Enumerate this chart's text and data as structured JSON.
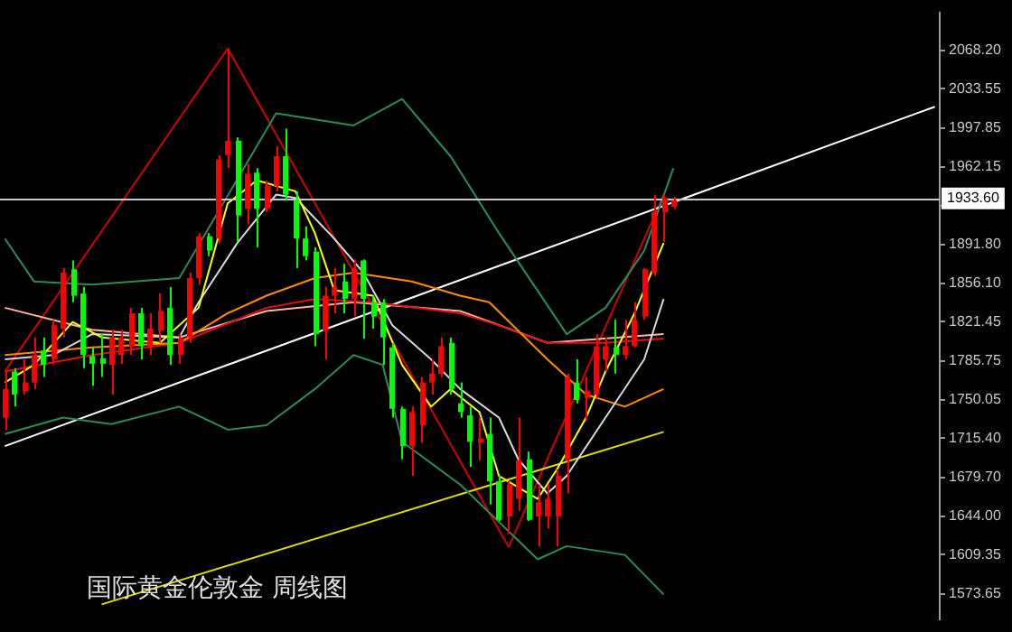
{
  "chart_data": {
    "type": "candlestick",
    "title": "国际黄金伦敦金 周线图",
    "categories": [
      null,
      null,
      null,
      null,
      null,
      null,
      null,
      null,
      null,
      null,
      null,
      null,
      null,
      null,
      null,
      null,
      null,
      null,
      null,
      null,
      null,
      null,
      null,
      null,
      null,
      null,
      null,
      null,
      null,
      null,
      null,
      null,
      null,
      null,
      null,
      null,
      null,
      null,
      null,
      null,
      null,
      null,
      null,
      null,
      null,
      null,
      null,
      null,
      null,
      null,
      null,
      null,
      null,
      null,
      null,
      null,
      null,
      null,
      null,
      null,
      null,
      null,
      null,
      null,
      null,
      null,
      null,
      null,
      null,
      null,
      null,
      null,
      null,
      null,
      null,
      null,
      null,
      null,
      null,
      null,
      null,
      null,
      null,
      null,
      null,
      null,
      null,
      null,
      null,
      null,
      null,
      null,
      null,
      null,
      null,
      null,
      null
    ],
    "ohlc": [
      [
        1734,
        1776,
        1723,
        1760
      ],
      [
        1776,
        1779,
        1744,
        1755
      ],
      [
        1758,
        1787,
        1755,
        1766
      ],
      [
        1766,
        1807,
        1760,
        1791
      ],
      [
        1795,
        1807,
        1771,
        1782
      ],
      [
        1787,
        1823,
        1782,
        1818
      ],
      [
        1815,
        1870,
        1807,
        1866
      ],
      [
        1869,
        1877,
        1839,
        1845
      ],
      [
        1847,
        1853,
        1779,
        1791
      ],
      [
        1790,
        1798,
        1763,
        1783
      ],
      [
        1788,
        1810,
        1771,
        1783
      ],
      [
        1782,
        1814,
        1755,
        1807
      ],
      [
        1791,
        1814,
        1783,
        1806
      ],
      [
        1799,
        1834,
        1791,
        1829
      ],
      [
        1829,
        1834,
        1787,
        1799
      ],
      [
        1798,
        1829,
        1791,
        1815
      ],
      [
        1813,
        1847,
        1802,
        1831
      ],
      [
        1834,
        1853,
        1782,
        1791
      ],
      [
        1791,
        1810,
        1783,
        1806
      ],
      [
        1807,
        1866,
        1802,
        1861
      ],
      [
        1861,
        1902,
        1855,
        1899
      ],
      [
        1899,
        1902,
        1881,
        1886
      ],
      [
        1897,
        1973,
        1893,
        1969
      ],
      [
        1973,
        2070,
        1961,
        1986
      ],
      [
        1986,
        1989,
        1894,
        1918
      ],
      [
        1924,
        1965,
        1910,
        1956
      ],
      [
        1957,
        1961,
        1889,
        1924
      ],
      [
        1924,
        1950,
        1921,
        1945
      ],
      [
        1945,
        1981,
        1940,
        1972
      ],
      [
        1972,
        1997,
        1932,
        1937
      ],
      [
        1932,
        1940,
        1870,
        1897
      ],
      [
        1897,
        1908,
        1877,
        1881
      ],
      [
        1885,
        1889,
        1799,
        1810
      ],
      [
        1813,
        1853,
        1787,
        1845
      ],
      [
        1845,
        1870,
        1829,
        1853
      ],
      [
        1858,
        1874,
        1829,
        1842
      ],
      [
        1842,
        1878,
        1826,
        1870
      ],
      [
        1877,
        1878,
        1806,
        1842
      ],
      [
        1839,
        1845,
        1815,
        1826
      ],
      [
        1839,
        1842,
        1782,
        1807
      ],
      [
        1798,
        1802,
        1734,
        1742
      ],
      [
        1742,
        1744,
        1696,
        1708
      ],
      [
        1708,
        1744,
        1681,
        1739
      ],
      [
        1727,
        1771,
        1711,
        1766
      ],
      [
        1766,
        1787,
        1755,
        1774
      ],
      [
        1774,
        1807,
        1771,
        1799
      ],
      [
        1802,
        1807,
        1755,
        1760
      ],
      [
        1747,
        1766,
        1734,
        1739
      ],
      [
        1736,
        1744,
        1689,
        1712
      ],
      [
        1711,
        1734,
        1695,
        1715
      ],
      [
        1719,
        1734,
        1655,
        1676
      ],
      [
        1676,
        1681,
        1640,
        1641
      ],
      [
        1644,
        1676,
        1628,
        1673
      ],
      [
        1660,
        1734,
        1649,
        1695
      ],
      [
        1696,
        1703,
        1640,
        1641
      ],
      [
        1644,
        1673,
        1617,
        1657
      ],
      [
        1644,
        1673,
        1633,
        1660
      ],
      [
        1644,
        1687,
        1617,
        1681
      ],
      [
        1695,
        1774,
        1665,
        1771
      ],
      [
        1766,
        1787,
        1747,
        1750
      ],
      [
        1752,
        1771,
        1731,
        1758
      ],
      [
        1755,
        1810,
        1752,
        1799
      ],
      [
        1787,
        1807,
        1776,
        1799
      ],
      [
        1798,
        1823,
        1774,
        1791
      ],
      [
        1791,
        1823,
        1787,
        1799
      ],
      [
        1799,
        1839,
        1798,
        1823
      ],
      [
        1826,
        1870,
        1823,
        1869
      ],
      [
        1866,
        1937,
        1863,
        1921
      ],
      [
        1921,
        1937,
        1894,
        1934
      ],
      [
        1926,
        1935,
        1924,
        1932
      ],
      null,
      null,
      null,
      null,
      null,
      null,
      null,
      null,
      null,
      null,
      null,
      null,
      null,
      null,
      null,
      null,
      null,
      null,
      null,
      null,
      null,
      null,
      null,
      null,
      null,
      null,
      null
    ],
    "colors": [
      "#ff0000",
      "#00ff00",
      "#ff0000",
      "#ff0000",
      "#00ff00",
      "#ff0000",
      "#ff0000",
      "#00ff00",
      "#00ff00",
      "#00ff00",
      "#00ff00",
      "#ff0000",
      "#ff0000",
      "#ff0000",
      "#00ff00",
      "#ff0000",
      "#ff0000",
      "#00ff00",
      "#ff0000",
      "#ff0000",
      "#ff0000",
      "#00ff00",
      "#ff0000",
      "#ff0000",
      "#00ff00",
      "#ff0000",
      "#00ff00",
      "#ff0000",
      "#ff0000",
      "#00ff00",
      "#00ff00",
      "#00ff00",
      "#00ff00",
      "#ff0000",
      "#ff0000",
      "#00ff00",
      "#ff0000",
      "#00ff00",
      "#00ff00",
      "#00ff00",
      "#00ff00",
      "#00ff00",
      "#ff0000",
      "#ff0000",
      "#ff0000",
      "#ff0000",
      "#00ff00",
      "#00ff00",
      "#00ff00",
      "#ff0000",
      "#00ff00",
      "#00ff00",
      "#ff0000",
      "#ff0000",
      "#00ff00",
      "#ff0000",
      "#ff0000",
      "#ff0000",
      "#ff0000",
      "#00ff00",
      "#ff0000",
      "#ff0000",
      "#ff0000",
      "#00ff00",
      "#ff0000",
      "#ff0000",
      "#ff0000",
      "#ff0000",
      "#ff0000",
      "#ff0000",
      null,
      null,
      null,
      null,
      null,
      null,
      null,
      null,
      null,
      null,
      null,
      null,
      null,
      null,
      null,
      null,
      null,
      null,
      null,
      null,
      null,
      null,
      null,
      null,
      null,
      null,
      null
    ],
    "series": [
      {
        "type": "line",
        "color": "#2e8b57",
        "values": [
          1897,
          null,
          null,
          1858,
          null,
          null,
          null,
          null,
          null,
          1855,
          null,
          null,
          null,
          null,
          null,
          null,
          null,
          null,
          1861,
          null,
          null,
          null,
          null,
          null,
          null,
          null,
          null,
          null,
          2011,
          null,
          null,
          null,
          null,
          null,
          null,
          null,
          2000,
          null,
          null,
          null,
          null,
          2024,
          null,
          null,
          null,
          null,
          1972,
          null,
          null,
          null,
          null,
          1902,
          null,
          null,
          null,
          null,
          null,
          null,
          1810,
          null,
          null,
          null,
          1834,
          null,
          null,
          null,
          1886,
          null,
          null,
          1961,
          null,
          null,
          null,
          null,
          null,
          null,
          null,
          null,
          null,
          null,
          null,
          null,
          null,
          null,
          null,
          null,
          null,
          null,
          null,
          null,
          null,
          null,
          null,
          null,
          null,
          null,
          null
        ]
      },
      {
        "type": "line",
        "color": "#2e8b57",
        "values": [
          1719,
          null,
          null,
          null,
          null,
          null,
          1734,
          null,
          null,
          null,
          null,
          1728,
          null,
          null,
          null,
          null,
          null,
          null,
          1744,
          null,
          null,
          null,
          null,
          1723,
          null,
          null,
          null,
          1727,
          null,
          null,
          null,
          null,
          1760,
          null,
          null,
          null,
          1791,
          null,
          null,
          1782,
          null,
          1712,
          null,
          null,
          null,
          null,
          null,
          1673,
          null,
          null,
          null,
          null,
          null,
          null,
          null,
          1605,
          null,
          null,
          1617,
          null,
          null,
          null,
          null,
          null,
          1609,
          null,
          null,
          null,
          1573,
          null,
          null,
          null,
          null,
          null,
          null,
          null,
          null,
          null,
          null,
          null,
          null,
          null,
          null,
          null,
          null,
          null,
          null,
          null,
          null,
          null,
          null,
          null,
          null,
          null,
          null,
          null,
          null
        ]
      },
      {
        "type": "line",
        "color": "#ffff00",
        "values": [
          1766,
          null,
          null,
          1782,
          null,
          null,
          null,
          1821,
          null,
          null,
          1807,
          null,
          null,
          null,
          null,
          null,
          1802,
          null,
          null,
          null,
          1834,
          null,
          null,
          1929,
          null,
          null,
          1950,
          null,
          null,
          null,
          1940,
          null,
          1902,
          null,
          1850,
          null,
          null,
          null,
          1845,
          null,
          null,
          1782,
          null,
          null,
          1744,
          null,
          1760,
          null,
          null,
          1739,
          null,
          1681,
          null,
          null,
          null,
          1660,
          null,
          1687,
          null,
          null,
          1734,
          null,
          1776,
          null,
          null,
          1829,
          null,
          null,
          1893,
          null,
          null,
          null,
          null,
          null,
          null,
          null,
          null,
          null,
          null,
          null,
          null,
          null,
          null,
          null,
          null,
          null,
          null,
          null,
          null,
          null,
          null,
          null,
          null,
          null,
          null,
          null,
          null
        ]
      },
      {
        "type": "line",
        "color": "#d8d8d8",
        "values": [
          1787,
          null,
          null,
          null,
          null,
          1791,
          null,
          null,
          null,
          1810,
          null,
          null,
          null,
          null,
          null,
          null,
          null,
          null,
          1807,
          null,
          1839,
          null,
          null,
          null,
          1893,
          null,
          null,
          null,
          1937,
          null,
          1934,
          null,
          null,
          null,
          1897,
          null,
          null,
          1866,
          null,
          null,
          1818,
          null,
          null,
          null,
          1787,
          null,
          null,
          1760,
          null,
          null,
          null,
          1734,
          null,
          1696,
          null,
          null,
          1665,
          null,
          1681,
          null,
          null,
          null,
          1734,
          null,
          null,
          null,
          1787,
          null,
          1842,
          null,
          null,
          null,
          null,
          null,
          null,
          null,
          null,
          null,
          null,
          null,
          null,
          null,
          null,
          null,
          null,
          null,
          null,
          null,
          null,
          null,
          null,
          null,
          null,
          null,
          null,
          null,
          null
        ]
      },
      {
        "type": "line",
        "color": "#ff8c00",
        "values": [
          1791,
          null,
          null,
          null,
          null,
          null,
          null,
          null,
          null,
          1798,
          null,
          null,
          null,
          null,
          null,
          null,
          null,
          null,
          1802,
          null,
          null,
          null,
          null,
          1829,
          null,
          null,
          null,
          1845,
          null,
          null,
          null,
          null,
          1861,
          null,
          null,
          null,
          1866,
          null,
          null,
          null,
          null,
          null,
          1858,
          null,
          null,
          null,
          null,
          1845,
          null,
          null,
          1839,
          null,
          null,
          null,
          null,
          null,
          1787,
          null,
          null,
          null,
          1755,
          null,
          null,
          null,
          1744,
          null,
          null,
          null,
          1760,
          null,
          null,
          null,
          null,
          null,
          null,
          null,
          null,
          null,
          null,
          null,
          null,
          null,
          null,
          null,
          null,
          null,
          null,
          null,
          null,
          null,
          null,
          null,
          null,
          null,
          null,
          null,
          null
        ]
      },
      {
        "type": "line",
        "color": "#e01010",
        "values": [
          1776,
          null,
          null,
          null,
          null,
          null,
          null,
          null,
          null,
          1791,
          null,
          null,
          null,
          null,
          null,
          null,
          null,
          null,
          1802,
          null,
          null,
          null,
          null,
          null,
          null,
          null,
          null,
          1834,
          null,
          null,
          null,
          null,
          1842,
          null,
          null,
          null,
          null,
          null,
          1839,
          null,
          null,
          null,
          null,
          null,
          null,
          null,
          null,
          1829,
          null,
          null,
          null,
          1818,
          null,
          null,
          null,
          null,
          1802,
          null,
          null,
          null,
          null,
          null,
          1802,
          null,
          null,
          null,
          null,
          null,
          1806,
          null,
          null,
          null,
          null,
          null,
          null,
          null,
          null,
          null,
          null,
          null,
          null,
          null,
          null,
          null,
          null,
          null,
          null,
          null,
          null,
          null,
          null,
          null,
          null,
          null,
          null,
          null,
          null
        ]
      },
      {
        "type": "line",
        "color": "#ffb4a0",
        "values": [
          1834,
          null,
          null,
          null,
          null,
          null,
          null,
          null,
          null,
          1814,
          null,
          null,
          null,
          null,
          null,
          null,
          null,
          null,
          1807,
          null,
          null,
          null,
          null,
          null,
          null,
          null,
          null,
          1831,
          null,
          null,
          null,
          null,
          null,
          null,
          null,
          null,
          1839,
          null,
          null,
          null,
          null,
          null,
          null,
          null,
          null,
          null,
          null,
          1831,
          null,
          null,
          null,
          null,
          null,
          null,
          null,
          null,
          1802,
          null,
          null,
          null,
          null,
          null,
          null,
          null,
          null,
          null,
          null,
          null,
          1810,
          null,
          null,
          null,
          null,
          null,
          null,
          null,
          null,
          null,
          null,
          null,
          null,
          null,
          null,
          null,
          null,
          null,
          null,
          null,
          null,
          null,
          null,
          null,
          null,
          null,
          null,
          null,
          null
        ]
      },
      {
        "type": "line",
        "color": "#ffffff",
        "values": [
          1708,
          null,
          null,
          null,
          null,
          null,
          null,
          null,
          null,
          null,
          null,
          null,
          null,
          null,
          null,
          null,
          null,
          null,
          null,
          null,
          null,
          null,
          null,
          null,
          null,
          null,
          null,
          null,
          null,
          null,
          null,
          null,
          null,
          null,
          null,
          null,
          null,
          null,
          null,
          null,
          null,
          null,
          null,
          null,
          null,
          null,
          null,
          null,
          null,
          null,
          null,
          null,
          null,
          null,
          null,
          null,
          null,
          null,
          null,
          null,
          null,
          null,
          null,
          null,
          null,
          null,
          null,
          null,
          null,
          null,
          null,
          null,
          null,
          null,
          null,
          null,
          null,
          null,
          null,
          null,
          null,
          null,
          null,
          null,
          null,
          null,
          null,
          null,
          null,
          null,
          null,
          null,
          null,
          null,
          null,
          null,
          2017
        ]
      },
      {
        "type": "line",
        "color": "#e0e000",
        "values": [
          null,
          null,
          null,
          null,
          null,
          null,
          null,
          null,
          null,
          null,
          1564,
          null,
          null,
          null,
          null,
          null,
          null,
          null,
          null,
          null,
          null,
          null,
          null,
          null,
          null,
          null,
          null,
          null,
          null,
          null,
          null,
          null,
          null,
          null,
          null,
          null,
          null,
          null,
          null,
          null,
          null,
          null,
          null,
          null,
          null,
          null,
          null,
          null,
          null,
          null,
          null,
          null,
          null,
          null,
          null,
          null,
          null,
          null,
          null,
          null,
          null,
          null,
          null,
          null,
          null,
          null,
          null,
          null,
          1721,
          null,
          null,
          null,
          null,
          null,
          null,
          null,
          null,
          null,
          null,
          null,
          null,
          null,
          null,
          null,
          null,
          null,
          null,
          null,
          null,
          null,
          null,
          null,
          null,
          null,
          null,
          null,
          null
        ]
      },
      {
        "type": "line",
        "color": "#d00000",
        "values": [
          1776,
          null,
          null,
          null,
          null,
          null,
          null,
          null,
          null,
          null,
          null,
          null,
          null,
          null,
          null,
          null,
          null,
          null,
          null,
          null,
          null,
          null,
          null,
          2070,
          null,
          null,
          null,
          null,
          null,
          null,
          null,
          null,
          null,
          null,
          null,
          null,
          null,
          null,
          null,
          null,
          null,
          null,
          null,
          null,
          null,
          null,
          null,
          null,
          null,
          null,
          null,
          null,
          1616,
          null,
          null,
          null,
          null,
          null,
          null,
          null,
          null,
          null,
          null,
          null,
          null,
          null,
          null,
          null,
          1937,
          null,
          null,
          null,
          null,
          null,
          null,
          null,
          null,
          null,
          null,
          null,
          null,
          null,
          null,
          null,
          null,
          null,
          null,
          null,
          null,
          null,
          null,
          null,
          null,
          null,
          null,
          null,
          null
        ]
      }
    ],
    "ylim": [
      1550,
      2103
    ],
    "yticks": [
      {
        "value": 1573.65,
        "label": "1573.65"
      },
      {
        "value": 1609.35,
        "label": "1609.35"
      },
      {
        "value": 1644,
        "label": "1644.00"
      },
      {
        "value": 1679.7,
        "label": "1679.70"
      },
      {
        "value": 1715.4,
        "label": "1715.40"
      },
      {
        "value": 1750.05,
        "label": "1750.05"
      },
      {
        "value": 1785.75,
        "label": "1785.75"
      },
      {
        "value": 1821.45,
        "label": "1821.45"
      },
      {
        "value": 1856.1,
        "label": "1856.10"
      },
      {
        "value": 1891.8,
        "label": "1891.80"
      },
      {
        "value": 1926.5,
        "label": null
      },
      {
        "value": 1962.15,
        "label": "1962.15"
      },
      {
        "value": 1997.85,
        "label": "1997.85"
      },
      {
        "value": 2033.55,
        "label": "2033.55"
      },
      {
        "value": 2068.2,
        "label": "2068.20"
      }
    ],
    "ref_lines": [
      {
        "axis": "y",
        "value": 1933.6,
        "label": "1933.60",
        "color": "#c8c8c8"
      }
    ],
    "tick_labels": "y"
  }
}
